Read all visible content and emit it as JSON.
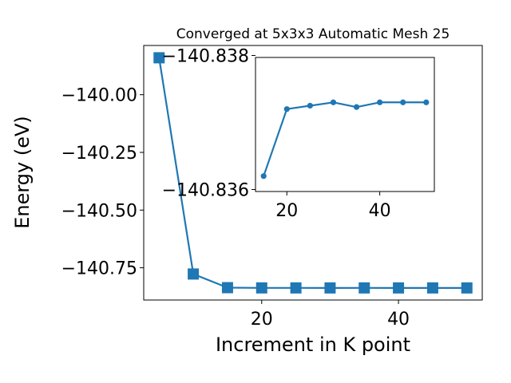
{
  "chart_data": [
    {
      "type": "line",
      "title": "Converged at 5x3x3 Automatic Mesh 25",
      "xlabel": "Increment in K point",
      "ylabel": "Energy (eV)",
      "x": [
        5,
        10,
        15,
        20,
        25,
        30,
        35,
        40,
        45,
        50
      ],
      "series": [
        {
          "values": [
            -139.84,
            -140.777,
            -140.8362,
            -140.8372,
            -140.83725,
            -140.8373,
            -140.83723,
            -140.8373,
            -140.8373,
            -140.8373
          ]
        }
      ],
      "xlim": [
        2.75,
        52.25
      ],
      "ylim": [
        -140.8897,
        -139.7867
      ],
      "xticks": [
        20,
        40
      ],
      "yticks": [
        -140.0,
        -140.25,
        -140.5,
        -140.75
      ],
      "ytick_labels": [
        "−140.00",
        "−140.25",
        "−140.50",
        "−140.75"
      ],
      "marker": "square",
      "color": "#1f77b4",
      "grid": false
    },
    {
      "type": "line",
      "title": "",
      "xlabel": "",
      "ylabel": "",
      "x": [
        15,
        20,
        25,
        30,
        35,
        40,
        45,
        50
      ],
      "series": [
        {
          "values": [
            -140.8362,
            -140.8372,
            -140.83725,
            -140.8373,
            -140.83723,
            -140.8373,
            -140.8373,
            -140.8373
          ]
        }
      ],
      "xlim": [
        13.25,
        51.75
      ],
      "ylim": [
        -140.83597,
        -140.83797
      ],
      "xticks": [
        20,
        40
      ],
      "yticks": [
        -140.838,
        -140.836
      ],
      "ytick_labels": [
        "−140.838",
        "−140.836"
      ],
      "marker": "circle",
      "color": "#1f77b4",
      "grid": false
    }
  ]
}
